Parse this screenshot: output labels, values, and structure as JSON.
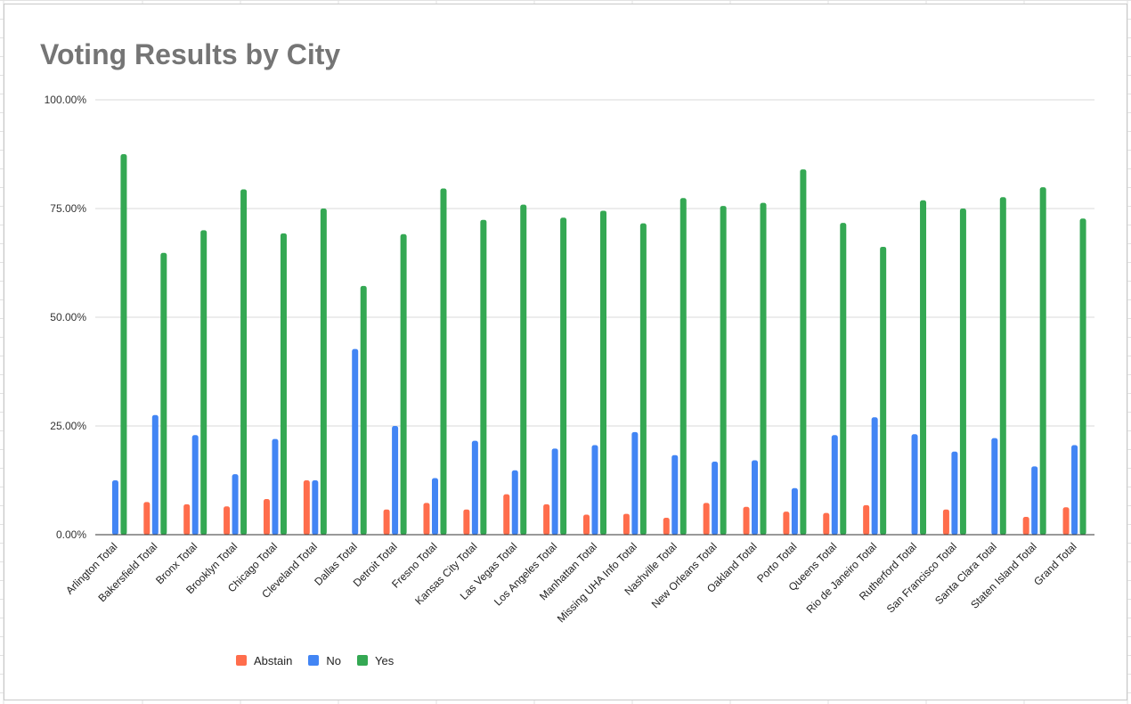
{
  "chart_data": {
    "type": "bar",
    "title": "Voting Results by City",
    "xlabel": "",
    "ylabel": "",
    "ylim": [
      0,
      100
    ],
    "yticks": [
      "0.00%",
      "25.00%",
      "50.00%",
      "75.00%",
      "100.00%"
    ],
    "grid": true,
    "legend_position": "bottom",
    "categories": [
      "Arlington Total",
      "Bakersfield Total",
      "Bronx Total",
      "Brooklyn Total",
      "Chicago Total",
      "Cleveland Total",
      "Dallas Total",
      "Detroit Total",
      "Fresno Total",
      "Kansas City Total",
      "Las Vegas Total",
      "Los Angeles Total",
      "Manhattan Total",
      "Missing UHA Info Total",
      "Nashville Total",
      "New Orleans Total",
      "Oakland Total",
      "Porto Total",
      "Queens Total",
      "Rio de Janeiro Total",
      "Rutherford Total",
      "San Francisco Total",
      "Santa Clara Total",
      "Staten Island Total",
      "Grand Total"
    ],
    "series": [
      {
        "name": "Abstain",
        "color": "#ff6d4c",
        "values": [
          0,
          7.5,
          7,
          6.5,
          8.2,
          12.5,
          0,
          5.8,
          7.3,
          5.8,
          9.3,
          7,
          4.6,
          4.8,
          3.9,
          7.3,
          6.4,
          5.3,
          5,
          6.8,
          0,
          5.8,
          0,
          4.1,
          6.3
        ]
      },
      {
        "name": "No",
        "color": "#4285f4",
        "values": [
          12.5,
          27.5,
          22.9,
          13.9,
          22,
          12.5,
          42.7,
          25,
          13,
          21.6,
          14.8,
          19.8,
          20.6,
          23.6,
          18.3,
          16.8,
          17.1,
          10.7,
          22.9,
          27,
          23.1,
          19.1,
          22.2,
          15.7,
          20.6
        ]
      },
      {
        "name": "Yes",
        "color": "#34a853",
        "values": [
          87.5,
          64.8,
          70,
          79.4,
          69.3,
          75,
          57.2,
          69.1,
          79.6,
          72.4,
          75.9,
          72.9,
          74.5,
          71.6,
          77.4,
          75.6,
          76.3,
          84,
          71.7,
          66.2,
          76.9,
          75,
          77.6,
          79.9,
          72.7
        ]
      }
    ]
  }
}
